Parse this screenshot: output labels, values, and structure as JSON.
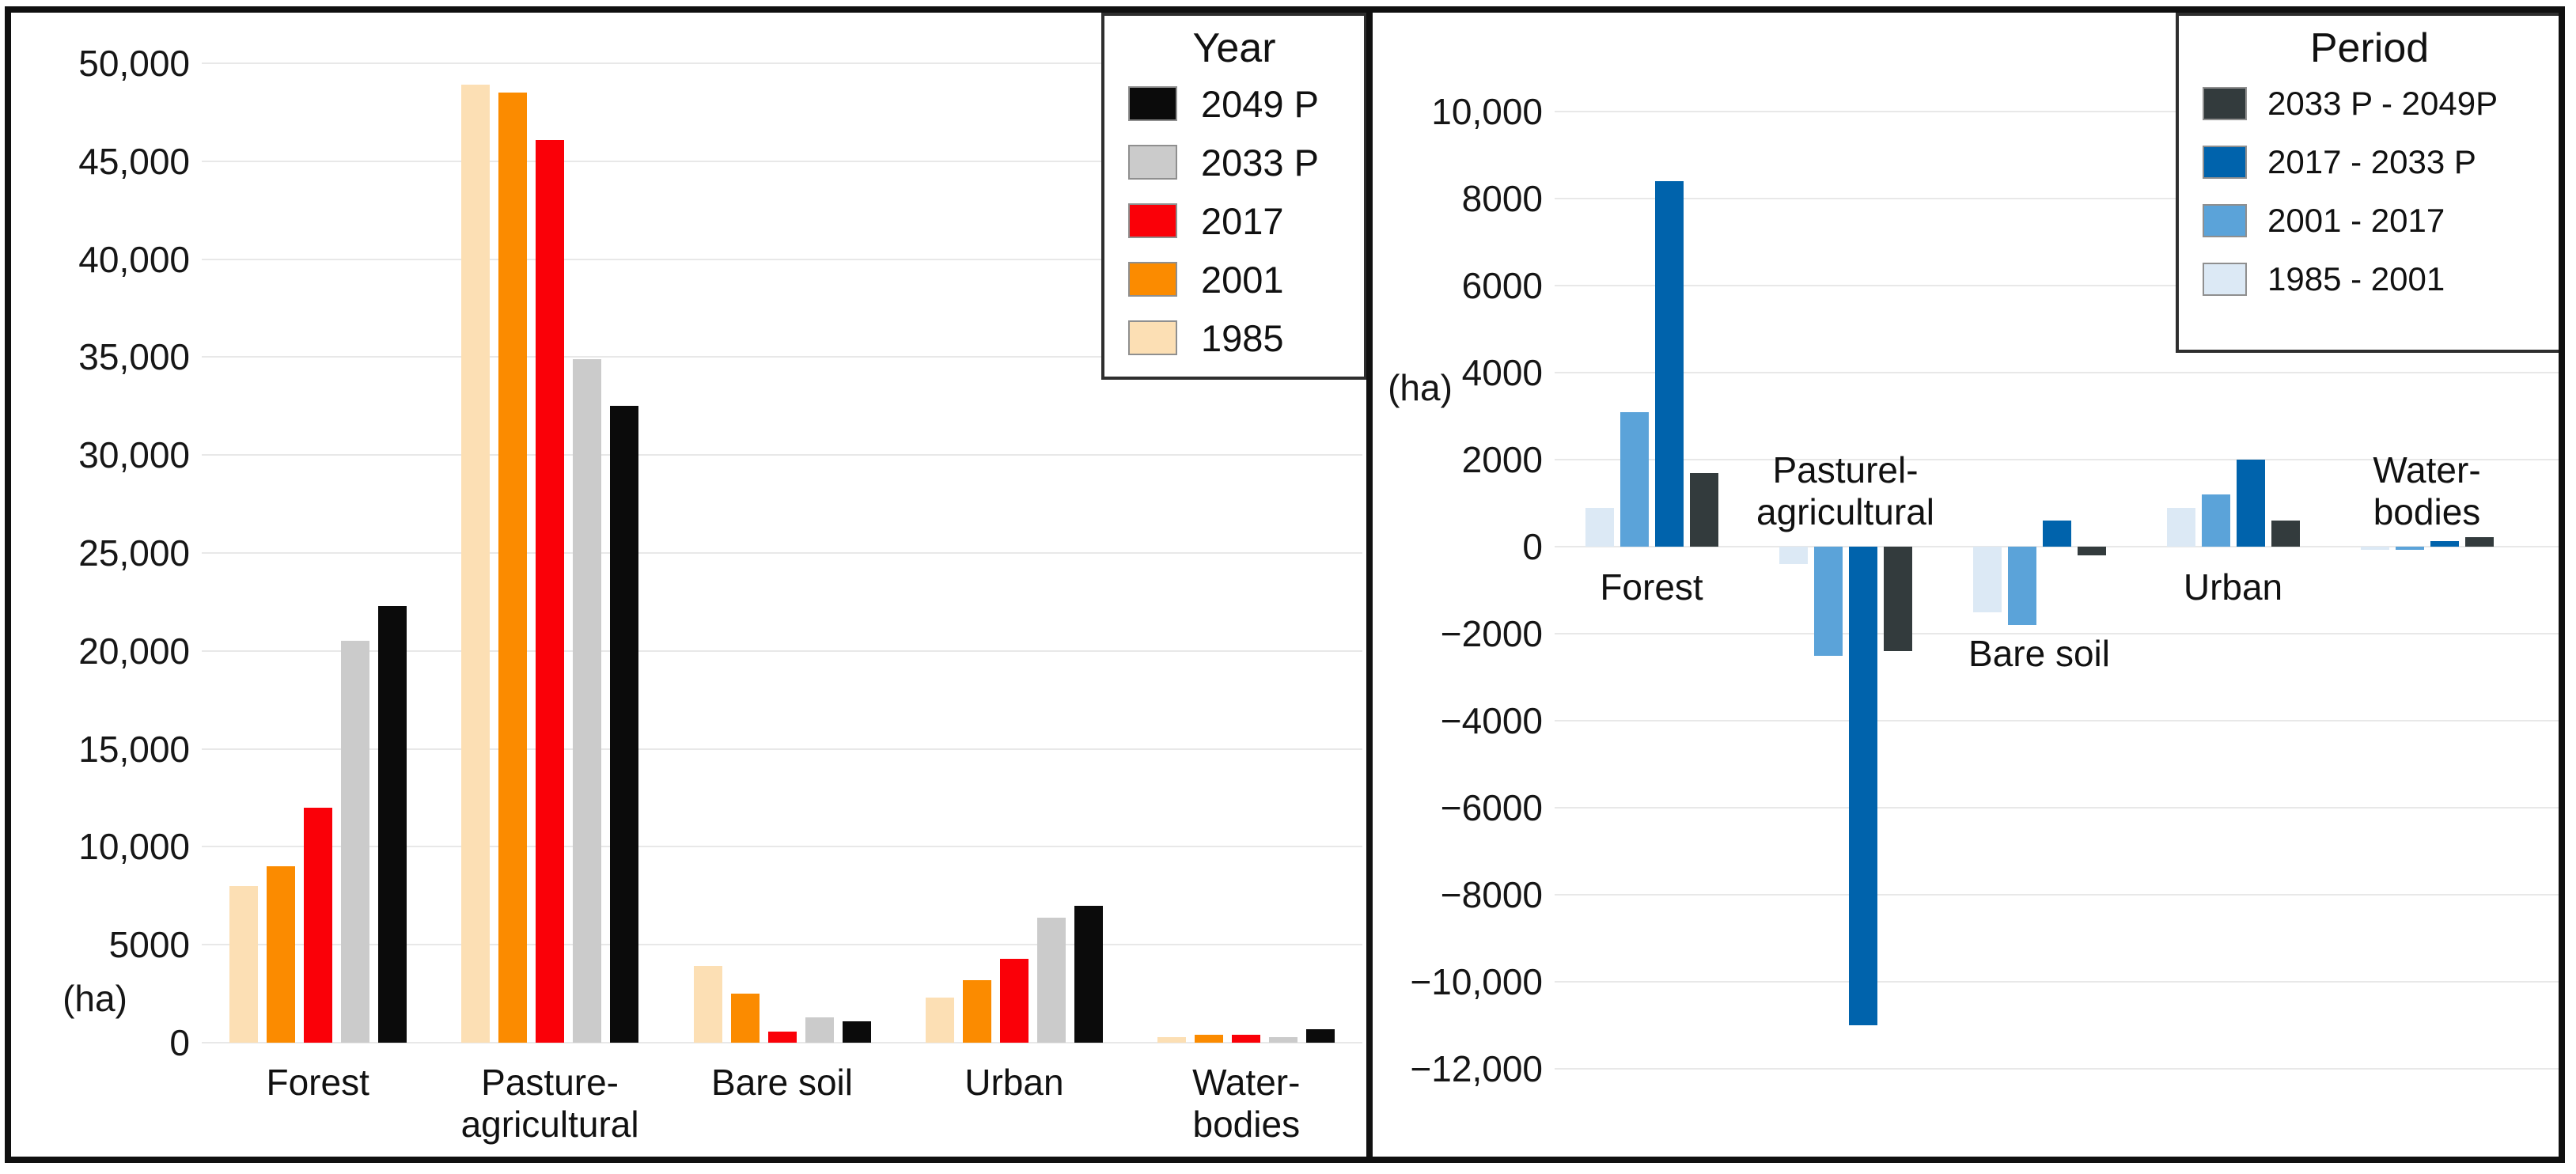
{
  "chart_data": [
    {
      "type": "bar",
      "panel": "left",
      "unit": "(ha)",
      "legend_title": "Year",
      "legend_position": "top-right",
      "grid": true,
      "ylim": [
        0,
        50000
      ],
      "yticks": [
        {
          "v": 50000,
          "label": "50,000"
        },
        {
          "v": 45000,
          "label": "45,000"
        },
        {
          "v": 40000,
          "label": "40,000"
        },
        {
          "v": 35000,
          "label": "35,000"
        },
        {
          "v": 30000,
          "label": "30,000"
        },
        {
          "v": 25000,
          "label": "25,000"
        },
        {
          "v": 20000,
          "label": "20,000"
        },
        {
          "v": 15000,
          "label": "15,000"
        },
        {
          "v": 10000,
          "label": "10,000"
        },
        {
          "v": 5000,
          "label": "5000"
        },
        {
          "v": 0,
          "label": "0"
        }
      ],
      "categories": [
        "Forest",
        "Pasture-agricultural",
        "Bare soil",
        "Urban",
        "Water-bodies"
      ],
      "category_label_lines": [
        [
          "Forest"
        ],
        [
          "Pasture-",
          "agricultural"
        ],
        [
          "Bare soil"
        ],
        [
          "Urban"
        ],
        [
          "Water-",
          "bodies"
        ]
      ],
      "series": [
        {
          "name": "1985",
          "color": "#fcdfb4",
          "values": [
            8000,
            48900,
            3900,
            2300,
            300
          ]
        },
        {
          "name": "2001",
          "color": "#fb8b00",
          "values": [
            9000,
            48500,
            2500,
            3200,
            400
          ]
        },
        {
          "name": "2017",
          "color": "#fa0008",
          "values": [
            12000,
            46100,
            550,
            4300,
            400
          ]
        },
        {
          "name": "2033 P",
          "color": "#cbcbcb",
          "values": [
            20500,
            34900,
            1300,
            6400,
            300
          ]
        },
        {
          "name": "2049 P",
          "color": "#0b0b0b",
          "values": [
            22300,
            32500,
            1100,
            7000,
            700
          ]
        }
      ],
      "legend_order": [
        "2049 P",
        "2033 P",
        "2017",
        "2001",
        "1985"
      ]
    },
    {
      "type": "bar",
      "panel": "right",
      "unit": "(ha)",
      "legend_title": "Period",
      "legend_position": "top-right",
      "grid": true,
      "ylim": [
        -12000,
        10000
      ],
      "yticks": [
        {
          "v": 10000,
          "label": "10,000"
        },
        {
          "v": 8000,
          "label": "8000"
        },
        {
          "v": 6000,
          "label": "6000"
        },
        {
          "v": 4000,
          "label": "4000"
        },
        {
          "v": 2000,
          "label": "2000"
        },
        {
          "v": 0,
          "label": "0"
        },
        {
          "v": -2000,
          "label": "−2000"
        },
        {
          "v": -4000,
          "label": "−4000"
        },
        {
          "v": -6000,
          "label": "−6000"
        },
        {
          "v": -8000,
          "label": "−8000"
        },
        {
          "v": -10000,
          "label": "−10,000"
        },
        {
          "v": -12000,
          "label": "−12,000"
        }
      ],
      "categories": [
        "Forest",
        "Pasturel-agricultural",
        "Bare soil",
        "Urban",
        "Water-bodies"
      ],
      "category_label_lines": [
        [
          "Forest"
        ],
        [
          "Pasturel-",
          "agricultural"
        ],
        [
          "Bare soil"
        ],
        [
          "Urban"
        ],
        [
          "Water-",
          "bodies"
        ]
      ],
      "series": [
        {
          "name": "1985 - 2001",
          "color": "#dce9f5",
          "values": [
            900,
            -400,
            -1500,
            900,
            -60
          ]
        },
        {
          "name": "2001 - 2017",
          "color": "#5ba3d9",
          "values": [
            3100,
            -2500,
            -1800,
            1200,
            -60
          ]
        },
        {
          "name": "2017 - 2033 P",
          "color": "#0063ac",
          "values": [
            8400,
            -11000,
            600,
            2000,
            120
          ]
        },
        {
          "name": "2033 P - 2049P",
          "color": "#333b3d",
          "values": [
            1700,
            -2400,
            -200,
            600,
            220
          ]
        }
      ],
      "legend_order": [
        "2033 P - 2049P",
        "2017 - 2033 P",
        "2001 - 2017",
        "1985 - 2001"
      ]
    }
  ]
}
